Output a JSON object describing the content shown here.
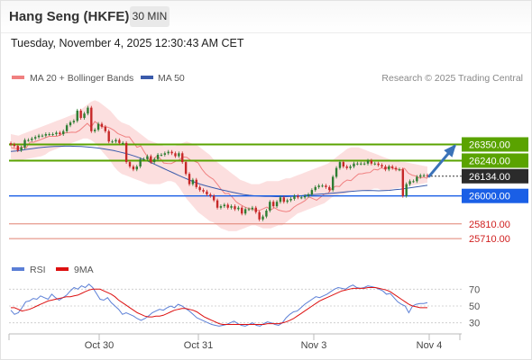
{
  "header": {
    "instrument": "Hang Seng (HKFE)",
    "timeframe": "30 MIN",
    "datetime": "Tuesday, November 4, 2025 12:30:43 AM CET"
  },
  "legend": {
    "ma20": "MA 20 + Bollinger Bands",
    "ma50": "MA 50",
    "rsi": "RSI",
    "rsi_ma": "9MA"
  },
  "credit": "Research © 2025 Trading Central",
  "colors": {
    "bull": "#2e7d32",
    "bear": "#c62828",
    "ma20": "#f08080",
    "ma50": "#3b5bab",
    "bands": "#f9c4c4",
    "resistance": "#5aa300",
    "support": "#1a5fe6",
    "target": "#e08070",
    "current": "#333333",
    "rsi": "#5b7fd6",
    "rsi_ma": "#dd1111",
    "arrow": "#3a72b8"
  },
  "chart_data": [
    {
      "type": "candlestick",
      "y_range": [
        25680,
        26720
      ],
      "x_ticks": [
        "Oct 30",
        "Oct 31",
        "Nov 3",
        "Nov 4"
      ],
      "current_price": 26134,
      "levels": [
        {
          "label": "26350.00",
          "value": 26350,
          "role": "resistance"
        },
        {
          "label": "26240.00",
          "value": 26240,
          "role": "resistance"
        },
        {
          "label": "26134.00",
          "value": 26134,
          "role": "current"
        },
        {
          "label": "26000.00",
          "value": 26000,
          "role": "pivot"
        },
        {
          "label": "25810.00",
          "value": 25810,
          "role": "support"
        },
        {
          "label": "25710.00",
          "value": 25710,
          "role": "support"
        }
      ],
      "forecast_arrow": {
        "from": 26134,
        "to": 26350
      },
      "close": [
        26350,
        26340,
        26310,
        26330,
        26380,
        26380,
        26390,
        26400,
        26410,
        26410,
        26420,
        26420,
        26420,
        26430,
        26420,
        26440,
        26480,
        26500,
        26510,
        26580,
        26530,
        26560,
        26600,
        26440,
        26450,
        26490,
        26470,
        26440,
        26370,
        26370,
        26380,
        26360,
        26360,
        26230,
        26200,
        26180,
        26200,
        26250,
        26250,
        26270,
        26230,
        26250,
        26280,
        26280,
        26290,
        26300,
        26290,
        26270,
        26290,
        26230,
        26150,
        26080,
        26110,
        26060,
        26040,
        26030,
        26010,
        26000,
        25970,
        25920,
        25930,
        25940,
        25920,
        25930,
        25910,
        25920,
        25880,
        25910,
        25910,
        25920,
        25890,
        25840,
        25860,
        25900,
        25960,
        25930,
        25960,
        25990,
        25960,
        25970,
        25980,
        26000,
        25990,
        25990,
        26000,
        26010,
        26040,
        26060,
        26070,
        26070,
        26060,
        26040,
        26130,
        26190,
        26230,
        26200,
        26190,
        26200,
        26220,
        26220,
        26220,
        26220,
        26240,
        26220,
        26220,
        26210,
        26200,
        26180,
        26200,
        26190,
        26180,
        26180,
        26000,
        26080,
        26100,
        26100,
        26130,
        26140,
        26140,
        26134
      ],
      "ma20": [
        26330,
        26322,
        26322,
        26333,
        26326,
        26365,
        26365,
        26375,
        26385,
        26395,
        26405,
        26405,
        26405,
        26415,
        26428,
        26430,
        26433,
        26432,
        26446,
        26469,
        26493,
        26467,
        26506,
        26486,
        26470,
        26470,
        26461,
        26446,
        26424,
        26413,
        26401,
        26401,
        26366,
        26331,
        26340,
        26296,
        26256,
        26226,
        26268,
        26257,
        26224,
        26221,
        26220,
        26233,
        26245,
        26265,
        26263,
        26244,
        26236,
        26225,
        26183,
        26150,
        26129,
        26113,
        26081,
        26046,
        26016,
        26017,
        25990,
        25959,
        25942,
        25927,
        25917,
        25911,
        25903,
        25901,
        25912,
        25924,
        25905,
        25920,
        25904,
        25897,
        25892,
        25898,
        25922,
        25940,
        25953,
        25969,
        25993,
        25982,
        25971,
        25990,
        26012,
        26018,
        26050,
        26066,
        26064,
        26092,
        26108,
        26104,
        26128,
        26150,
        26151,
        26157,
        26159,
        26181,
        26177,
        26192,
        26181,
        26201,
        26187,
        26182,
        26177,
        26187,
        26155,
        26141,
        26135,
        26122,
        26127,
        26119
      ],
      "upper_band": [
        26420,
        26415,
        26410,
        26420,
        26430,
        26440,
        26450,
        26460,
        26470,
        26480,
        26490,
        26500,
        26510,
        26520,
        26530,
        26540,
        26550,
        26560,
        26580,
        26600,
        26620,
        26640,
        26650,
        26640,
        26620,
        26600,
        26580,
        26550,
        26520,
        26500,
        26490,
        26480,
        26460,
        26440,
        26420,
        26400,
        26380,
        26370,
        26360,
        26350,
        26340,
        26340,
        26340,
        26340,
        26350,
        26360,
        26370,
        26360,
        26350,
        26340,
        26320,
        26300,
        26280,
        26250,
        26230,
        26210,
        26190,
        26170,
        26150,
        26130,
        26110,
        26100,
        26090,
        26080,
        26080,
        26080,
        26090,
        26100,
        26100,
        26100,
        26100,
        26110,
        26120,
        26120,
        26130,
        26140,
        26150,
        26160,
        26170,
        26180,
        26190,
        26200,
        26210,
        26220,
        26240,
        26260,
        26280,
        26300,
        26320,
        26330,
        26330,
        26330,
        26320,
        26310,
        26300,
        26290,
        26280,
        26270,
        26260,
        26250,
        26240,
        26240,
        26230,
        26230,
        26225,
        26220,
        26215,
        26210,
        26205,
        26200
      ],
      "lower_band": [
        26250,
        26248,
        26246,
        26245,
        26250,
        26255,
        26260,
        26265,
        26270,
        26280,
        26300,
        26310,
        26320,
        26330,
        26340,
        26350,
        26360,
        26370,
        26380,
        26390,
        26390,
        26380,
        26360,
        26330,
        26300,
        26270,
        26240,
        26200,
        26170,
        26150,
        26140,
        26130,
        26120,
        26110,
        26100,
        26090,
        26080,
        26080,
        26080,
        26080,
        26090,
        26100,
        26100,
        26090,
        26060,
        26020,
        25980,
        25950,
        25920,
        25890,
        25870,
        25850,
        25830,
        25820,
        25800,
        25780,
        25770,
        25760,
        25760,
        25760,
        25770,
        25780,
        25790,
        25800,
        25800,
        25790,
        25780,
        25780,
        25780,
        25790,
        25800,
        25800,
        25820,
        25840,
        25860,
        25880,
        25890,
        25900,
        25910,
        25920,
        25930,
        25940,
        25950,
        25970,
        25990,
        26000,
        26010,
        26010,
        26020,
        26030,
        26040,
        26040,
        26040,
        26040,
        26040,
        26050,
        26050,
        26040,
        26040,
        26040,
        26050,
        26050,
        26060,
        26060,
        26065,
        26070,
        26075,
        26080,
        26085,
        26090
      ],
      "ma50": [
        26302,
        26305,
        26311,
        26317,
        26322,
        26327,
        26331,
        26334,
        26336,
        26337,
        26338,
        26338,
        26337,
        26336,
        26333,
        26330,
        26326,
        26321,
        26315,
        26308,
        26300,
        26291,
        26281,
        26269,
        26256,
        26241,
        26225,
        26208,
        26191,
        26174,
        26157,
        26140,
        26124,
        26108,
        26093,
        26080,
        26069,
        26059,
        26050,
        26041,
        26033,
        26025,
        26017,
        26010,
        26005,
        26001,
        25998,
        25997,
        25996,
        25995,
        25995,
        25995,
        25997,
        25999,
        26003,
        26007,
        26010,
        26012,
        26014,
        26017,
        26020,
        26024,
        26028,
        26031,
        26034,
        26036,
        26037,
        26036,
        26035,
        26036,
        26038,
        26042,
        26046,
        26051,
        26056,
        26062,
        26067,
        26072
      ]
    },
    {
      "type": "line",
      "indicator": "RSI",
      "y_range": [
        20,
        80
      ],
      "ticks": [
        "70",
        "50",
        "30"
      ],
      "series": [
        {
          "name": "RSI",
          "values": [
            45,
            40,
            42,
            48,
            55,
            56,
            59,
            58,
            62,
            60,
            58,
            64,
            60,
            57,
            60,
            63,
            68,
            72,
            70,
            74,
            72,
            76,
            72,
            65,
            58,
            57,
            60,
            54,
            50,
            46,
            40,
            42,
            40,
            38,
            35,
            33,
            35,
            38,
            42,
            44,
            46,
            45,
            48,
            50,
            48,
            52,
            50,
            47,
            44,
            40,
            36,
            34,
            32,
            30,
            28,
            27,
            26,
            27,
            28,
            30,
            32,
            29,
            27,
            26,
            28,
            30,
            27,
            26,
            29,
            31,
            30,
            28,
            27,
            30,
            36,
            40,
            43,
            44,
            48,
            52,
            55,
            58,
            61,
            60,
            62,
            64,
            67,
            70,
            72,
            71,
            70,
            73,
            75,
            72,
            71,
            72,
            74,
            73,
            72,
            70,
            68,
            64,
            65,
            60,
            55,
            52,
            50,
            42,
            50,
            52,
            53,
            53,
            54
          ]
        },
        {
          "name": "9MA",
          "values": [
            48,
            48,
            46,
            44,
            45,
            46,
            48,
            50,
            52,
            54,
            56,
            57,
            58,
            59,
            60,
            61,
            61,
            62,
            63,
            65,
            67,
            69,
            70,
            70,
            70,
            68,
            66,
            64,
            61,
            57,
            54,
            51,
            48,
            45,
            42,
            40,
            38,
            37,
            37,
            38,
            38,
            39,
            41,
            43,
            45,
            46,
            47,
            47,
            46,
            45,
            43,
            40,
            37,
            35,
            33,
            31,
            29,
            28,
            28,
            28,
            28,
            28,
            28,
            28,
            28,
            28,
            28,
            28,
            28,
            29,
            29,
            29,
            29,
            30,
            31,
            33,
            35,
            38,
            41,
            44,
            47,
            50,
            53,
            56,
            58,
            60,
            62,
            64,
            66,
            68,
            69,
            70,
            71,
            71,
            71,
            71,
            72,
            72,
            72,
            71,
            70,
            69,
            67,
            64,
            61,
            58,
            55,
            52,
            50,
            49,
            48,
            48,
            48
          ]
        }
      ]
    }
  ]
}
